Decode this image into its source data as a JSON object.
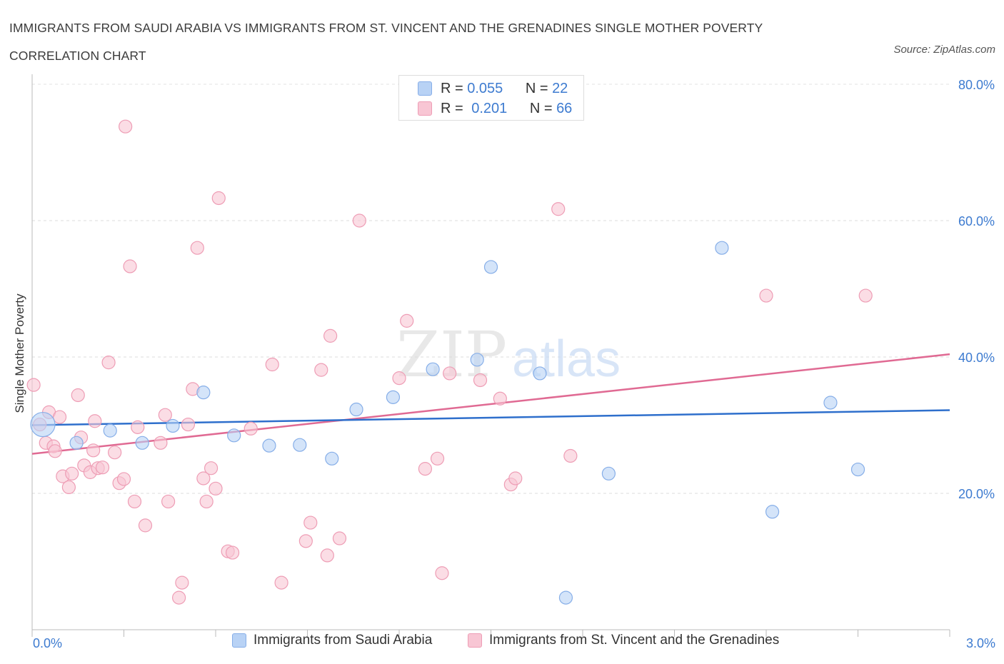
{
  "header": {
    "title": "IMMIGRANTS FROM SAUDI ARABIA VS IMMIGRANTS FROM ST. VINCENT AND THE GRENADINES SINGLE MOTHER POVERTY CORRELATION CHART",
    "source": "Source: ZipAtlas.com"
  },
  "stats": {
    "blue": {
      "r_label": "R =",
      "r_value": "0.055",
      "n_label": "N =",
      "n_value": "22"
    },
    "pink": {
      "r_label": "R =",
      "r_value": "0.201",
      "n_label": "N =",
      "n_value": "66"
    }
  },
  "watermark": {
    "zip": "ZIP",
    "atlas": "atlas"
  },
  "chart_data": {
    "type": "scatter",
    "title": "IMMIGRANTS FROM SAUDI ARABIA VS IMMIGRANTS FROM ST. VINCENT AND THE GRENADINES SINGLE MOTHER POVERTY CORRELATION CHART",
    "xlabel": "",
    "ylabel": "Single Mother Poverty",
    "xlim": [
      0,
      3.0
    ],
    "ylim": [
      0,
      80
    ],
    "x_tick_labels": [
      "0.0%",
      "3.0%"
    ],
    "y_ticks": [
      20,
      40,
      60,
      80
    ],
    "y_tick_labels": [
      "20.0%",
      "40.0%",
      "60.0%",
      "80.0%"
    ],
    "grid": true,
    "legend_position": "bottom",
    "colors": {
      "blue_fill": "#b8d2f5",
      "blue_stroke": "#86aee8",
      "blue_line": "#2e6fcc",
      "pink_fill": "#f8c6d4",
      "pink_stroke": "#ee9db5",
      "pink_line": "#e06a93",
      "tick_text": "#3d7bd0"
    },
    "series": [
      {
        "name": "Immigrants from Saudi Arabia",
        "color": "#86aee8",
        "trend": {
          "x": [
            0,
            3.0
          ],
          "y": [
            30.0,
            32.2
          ]
        },
        "points": [
          {
            "x": 0.035,
            "y": 30.1,
            "big": true
          },
          {
            "x": 0.145,
            "y": 27.4
          },
          {
            "x": 0.255,
            "y": 29.2
          },
          {
            "x": 0.36,
            "y": 27.4
          },
          {
            "x": 0.46,
            "y": 29.9
          },
          {
            "x": 0.56,
            "y": 34.8
          },
          {
            "x": 0.66,
            "y": 28.5
          },
          {
            "x": 0.775,
            "y": 27.0
          },
          {
            "x": 0.875,
            "y": 27.1
          },
          {
            "x": 0.98,
            "y": 25.1
          },
          {
            "x": 1.06,
            "y": 32.3
          },
          {
            "x": 1.18,
            "y": 34.1
          },
          {
            "x": 1.31,
            "y": 38.2
          },
          {
            "x": 1.455,
            "y": 39.6
          },
          {
            "x": 1.5,
            "y": 53.2
          },
          {
            "x": 1.66,
            "y": 37.6
          },
          {
            "x": 1.745,
            "y": 4.7
          },
          {
            "x": 1.885,
            "y": 22.9
          },
          {
            "x": 2.255,
            "y": 56.0
          },
          {
            "x": 2.42,
            "y": 17.3
          },
          {
            "x": 2.61,
            "y": 33.3
          },
          {
            "x": 2.7,
            "y": 23.5
          }
        ]
      },
      {
        "name": "Immigrants from St. Vincent and the Grenadines",
        "color": "#ee9db5",
        "trend": {
          "x": [
            0,
            3.0
          ],
          "y": [
            25.8,
            40.4
          ]
        },
        "points": [
          {
            "x": 0.005,
            "y": 35.9
          },
          {
            "x": 0.025,
            "y": 30.1
          },
          {
            "x": 0.045,
            "y": 27.4
          },
          {
            "x": 0.055,
            "y": 31.9
          },
          {
            "x": 0.07,
            "y": 26.9
          },
          {
            "x": 0.075,
            "y": 26.2
          },
          {
            "x": 0.09,
            "y": 31.2
          },
          {
            "x": 0.1,
            "y": 22.5
          },
          {
            "x": 0.12,
            "y": 20.9
          },
          {
            "x": 0.13,
            "y": 22.9
          },
          {
            "x": 0.15,
            "y": 34.4
          },
          {
            "x": 0.16,
            "y": 28.2
          },
          {
            "x": 0.17,
            "y": 24.1
          },
          {
            "x": 0.19,
            "y": 23.1
          },
          {
            "x": 0.2,
            "y": 26.3
          },
          {
            "x": 0.205,
            "y": 30.6
          },
          {
            "x": 0.215,
            "y": 23.7
          },
          {
            "x": 0.23,
            "y": 23.8
          },
          {
            "x": 0.25,
            "y": 39.2
          },
          {
            "x": 0.27,
            "y": 26.0
          },
          {
            "x": 0.285,
            "y": 21.5
          },
          {
            "x": 0.3,
            "y": 22.1
          },
          {
            "x": 0.305,
            "y": 73.8
          },
          {
            "x": 0.32,
            "y": 53.3
          },
          {
            "x": 0.335,
            "y": 18.8
          },
          {
            "x": 0.345,
            "y": 29.7
          },
          {
            "x": 0.37,
            "y": 15.3
          },
          {
            "x": 0.42,
            "y": 27.4
          },
          {
            "x": 0.435,
            "y": 31.5
          },
          {
            "x": 0.445,
            "y": 18.8
          },
          {
            "x": 0.48,
            "y": 4.7
          },
          {
            "x": 0.49,
            "y": 6.9
          },
          {
            "x": 0.51,
            "y": 30.1
          },
          {
            "x": 0.525,
            "y": 35.3
          },
          {
            "x": 0.54,
            "y": 56.0
          },
          {
            "x": 0.56,
            "y": 22.2
          },
          {
            "x": 0.57,
            "y": 18.8
          },
          {
            "x": 0.585,
            "y": 23.7
          },
          {
            "x": 0.6,
            "y": 20.7
          },
          {
            "x": 0.61,
            "y": 63.3
          },
          {
            "x": 0.64,
            "y": 11.5
          },
          {
            "x": 0.655,
            "y": 11.3
          },
          {
            "x": 0.715,
            "y": 29.5
          },
          {
            "x": 0.785,
            "y": 38.9
          },
          {
            "x": 0.815,
            "y": 6.9
          },
          {
            "x": 0.895,
            "y": 13.0
          },
          {
            "x": 0.91,
            "y": 15.7
          },
          {
            "x": 0.945,
            "y": 38.1
          },
          {
            "x": 0.965,
            "y": 10.9
          },
          {
            "x": 0.975,
            "y": 43.1
          },
          {
            "x": 1.005,
            "y": 13.4
          },
          {
            "x": 1.07,
            "y": 60.0
          },
          {
            "x": 1.2,
            "y": 36.9
          },
          {
            "x": 1.225,
            "y": 45.3
          },
          {
            "x": 1.285,
            "y": 23.6
          },
          {
            "x": 1.325,
            "y": 25.1
          },
          {
            "x": 1.34,
            "y": 8.3
          },
          {
            "x": 1.365,
            "y": 37.6
          },
          {
            "x": 1.465,
            "y": 36.6
          },
          {
            "x": 1.53,
            "y": 33.9
          },
          {
            "x": 1.565,
            "y": 21.3
          },
          {
            "x": 1.58,
            "y": 22.2
          },
          {
            "x": 1.72,
            "y": 61.7
          },
          {
            "x": 1.76,
            "y": 25.5
          },
          {
            "x": 2.4,
            "y": 49.0
          },
          {
            "x": 2.725,
            "y": 49.0
          }
        ]
      }
    ]
  }
}
